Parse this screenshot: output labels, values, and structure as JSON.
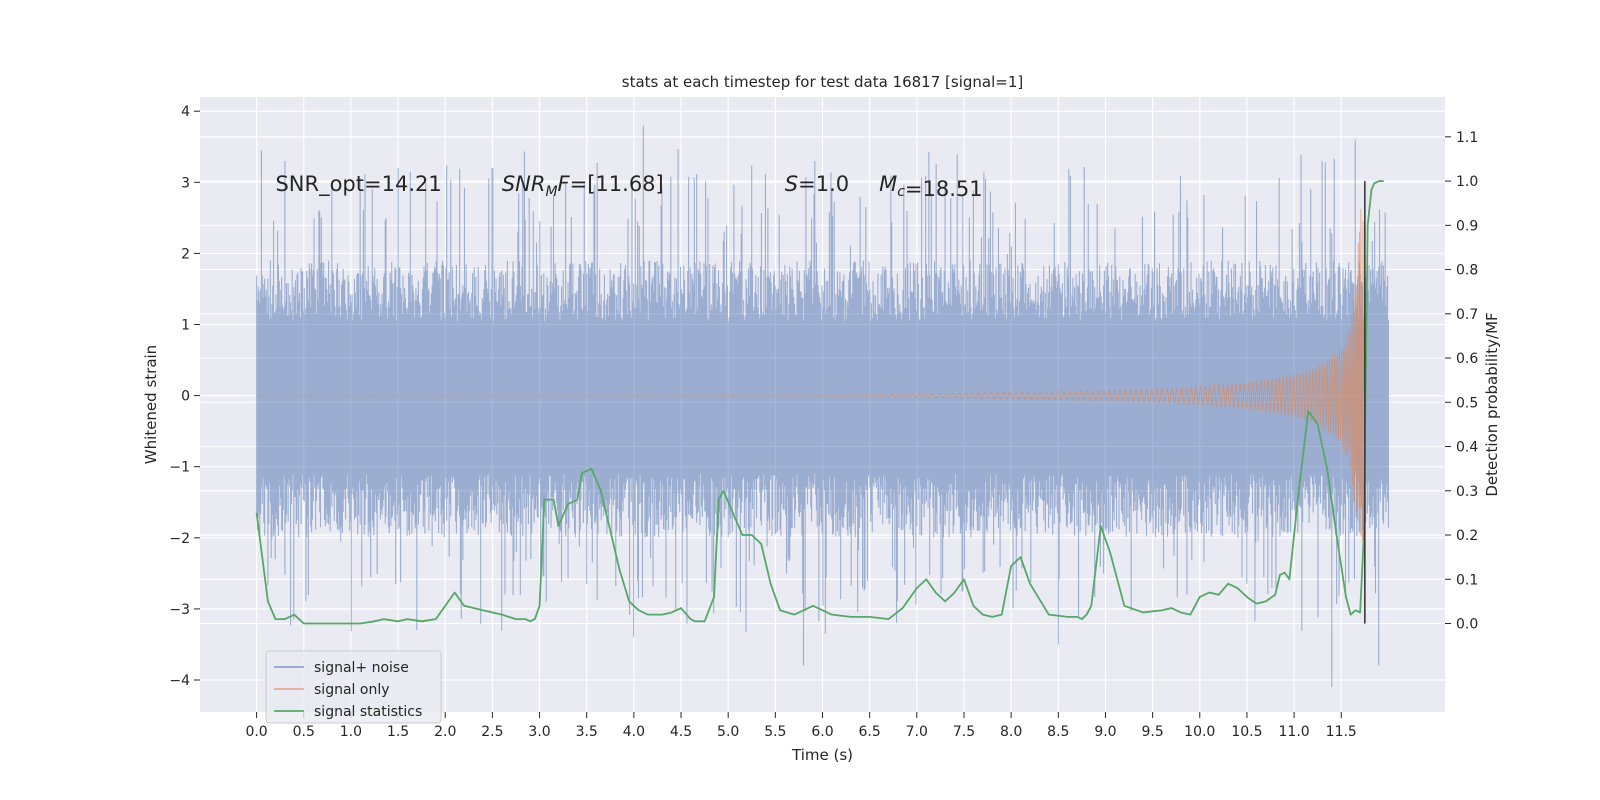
{
  "chart_data": {
    "type": "line",
    "title": "stats at each timestep for test data 16817 [signal=1]",
    "xlabel": "Time (s)",
    "ylabel": "Whitened strain",
    "ylabel_right": "Detection probability/MF",
    "xlim": [
      -0.6,
      12.6
    ],
    "ylim": [
      -4.45,
      4.2
    ],
    "ylim_right": [
      -0.2,
      1.19
    ],
    "x_ticks": [
      "0.0",
      "0.5",
      "1.0",
      "1.5",
      "2.0",
      "2.5",
      "3.0",
      "3.5",
      "4.0",
      "4.5",
      "5.0",
      "5.5",
      "6.0",
      "6.5",
      "7.0",
      "7.5",
      "8.0",
      "8.5",
      "9.0",
      "9.5",
      "10.0",
      "10.5",
      "11.0",
      "11.5"
    ],
    "y_ticks": [
      "−4",
      "−3",
      "−2",
      "−1",
      "0",
      "1",
      "2",
      "3",
      "4"
    ],
    "y_ticks_right": [
      "0.0",
      "0.1",
      "0.2",
      "0.3",
      "0.4",
      "0.5",
      "0.6",
      "0.7",
      "0.8",
      "0.9",
      "1.0",
      "1.1"
    ],
    "grid": true,
    "legend_placement": "lower-left",
    "annotations": [
      {
        "prefix": "SNR_opt=14.21",
        "base": "",
        "sub": "",
        "suffix": "",
        "italic": false
      },
      {
        "prefix": "",
        "base": "SNR",
        "sub": "M",
        "suffix": "F=[11.68]",
        "italic": true
      },
      {
        "prefix": "",
        "base": "S",
        "sub": "",
        "suffix": "=1.0",
        "italic": true
      },
      {
        "prefix": "",
        "base": "M",
        "sub": "c",
        "suffix": "=18.51",
        "italic": true
      }
    ],
    "series": [
      {
        "name": "signal+ noise",
        "color": "#4c72b0",
        "x_range": [
          0.0,
          12.0
        ],
        "envelope_upper_typical": 1.9,
        "envelope_lower_typical": -2.0,
        "peaks_upper": [
          [
            0.05,
            3.45
          ],
          [
            0.3,
            3.3
          ],
          [
            1.5,
            3.2
          ],
          [
            2.5,
            3.2
          ],
          [
            4.1,
            3.8
          ],
          [
            7.3,
            3.0
          ],
          [
            11.3,
            3.3
          ],
          [
            11.65,
            3.6
          ]
        ],
        "peaks_lower": [
          [
            1.7,
            -3.3
          ],
          [
            2.6,
            -3.3
          ],
          [
            4.0,
            -3.4
          ],
          [
            5.8,
            -3.8
          ],
          [
            8.5,
            -3.5
          ],
          [
            11.4,
            -4.1
          ],
          [
            11.9,
            -3.8
          ]
        ]
      },
      {
        "name": "signal only",
        "color": "#dd8452",
        "x": [
          0.0,
          6.0,
          7.0,
          8.0,
          9.0,
          9.5,
          10.0,
          10.5,
          11.0,
          11.2,
          11.4,
          11.5,
          11.6,
          11.65,
          11.7,
          11.73
        ],
        "amplitude": [
          0.005,
          0.01,
          0.02,
          0.05,
          0.07,
          0.09,
          0.13,
          0.18,
          0.3,
          0.38,
          0.55,
          0.7,
          1.0,
          1.6,
          2.5,
          3.0
        ],
        "post_merger_value": 0.0
      },
      {
        "name": "signal statistics",
        "color": "#55a868",
        "axis": "right",
        "x": [
          0.0,
          0.06,
          0.12,
          0.2,
          0.3,
          0.4,
          0.5,
          0.7,
          0.9,
          1.1,
          1.25,
          1.35,
          1.5,
          1.6,
          1.75,
          1.9,
          2.0,
          2.1,
          2.2,
          2.4,
          2.6,
          2.75,
          2.85,
          2.9,
          2.95,
          3.0,
          3.05,
          3.15,
          3.2,
          3.3,
          3.4,
          3.45,
          3.55,
          3.65,
          3.75,
          3.85,
          3.95,
          4.05,
          4.15,
          4.3,
          4.4,
          4.5,
          4.6,
          4.65,
          4.75,
          4.85,
          4.9,
          4.95,
          5.05,
          5.15,
          5.25,
          5.35,
          5.45,
          5.55,
          5.7,
          5.9,
          6.1,
          6.3,
          6.5,
          6.7,
          6.85,
          7.0,
          7.1,
          7.2,
          7.3,
          7.4,
          7.5,
          7.6,
          7.7,
          7.8,
          7.9,
          8.0,
          8.1,
          8.2,
          8.4,
          8.6,
          8.7,
          8.75,
          8.8,
          8.85,
          8.95,
          9.05,
          9.2,
          9.4,
          9.6,
          9.7,
          9.8,
          9.9,
          10.0,
          10.1,
          10.2,
          10.3,
          10.4,
          10.5,
          10.6,
          10.7,
          10.8,
          10.85,
          10.9,
          10.95,
          11.05,
          11.15,
          11.25,
          11.35,
          11.45,
          11.55,
          11.6,
          11.65,
          11.7,
          11.74,
          11.78,
          11.82,
          11.85,
          11.9,
          11.95
        ],
        "y": [
          0.25,
          0.15,
          0.05,
          0.01,
          0.01,
          0.02,
          0.0,
          0.0,
          0.0,
          0.0,
          0.005,
          0.01,
          0.005,
          0.01,
          0.005,
          0.01,
          0.04,
          0.07,
          0.04,
          0.03,
          0.02,
          0.01,
          0.01,
          0.005,
          0.01,
          0.04,
          0.28,
          0.28,
          0.22,
          0.27,
          0.28,
          0.34,
          0.35,
          0.3,
          0.21,
          0.12,
          0.05,
          0.03,
          0.02,
          0.02,
          0.025,
          0.035,
          0.01,
          0.005,
          0.005,
          0.06,
          0.28,
          0.3,
          0.25,
          0.2,
          0.2,
          0.18,
          0.09,
          0.03,
          0.02,
          0.04,
          0.02,
          0.015,
          0.015,
          0.01,
          0.035,
          0.08,
          0.1,
          0.07,
          0.05,
          0.07,
          0.1,
          0.04,
          0.02,
          0.015,
          0.02,
          0.13,
          0.15,
          0.09,
          0.02,
          0.015,
          0.015,
          0.01,
          0.02,
          0.04,
          0.22,
          0.16,
          0.04,
          0.025,
          0.03,
          0.035,
          0.025,
          0.02,
          0.06,
          0.07,
          0.065,
          0.09,
          0.08,
          0.06,
          0.045,
          0.05,
          0.065,
          0.11,
          0.115,
          0.1,
          0.3,
          0.48,
          0.45,
          0.35,
          0.2,
          0.06,
          0.02,
          0.03,
          0.025,
          0.2,
          0.9,
          0.98,
          0.995,
          1.0,
          1.0
        ],
        "vertical_marker_x": 11.75
      }
    ]
  }
}
